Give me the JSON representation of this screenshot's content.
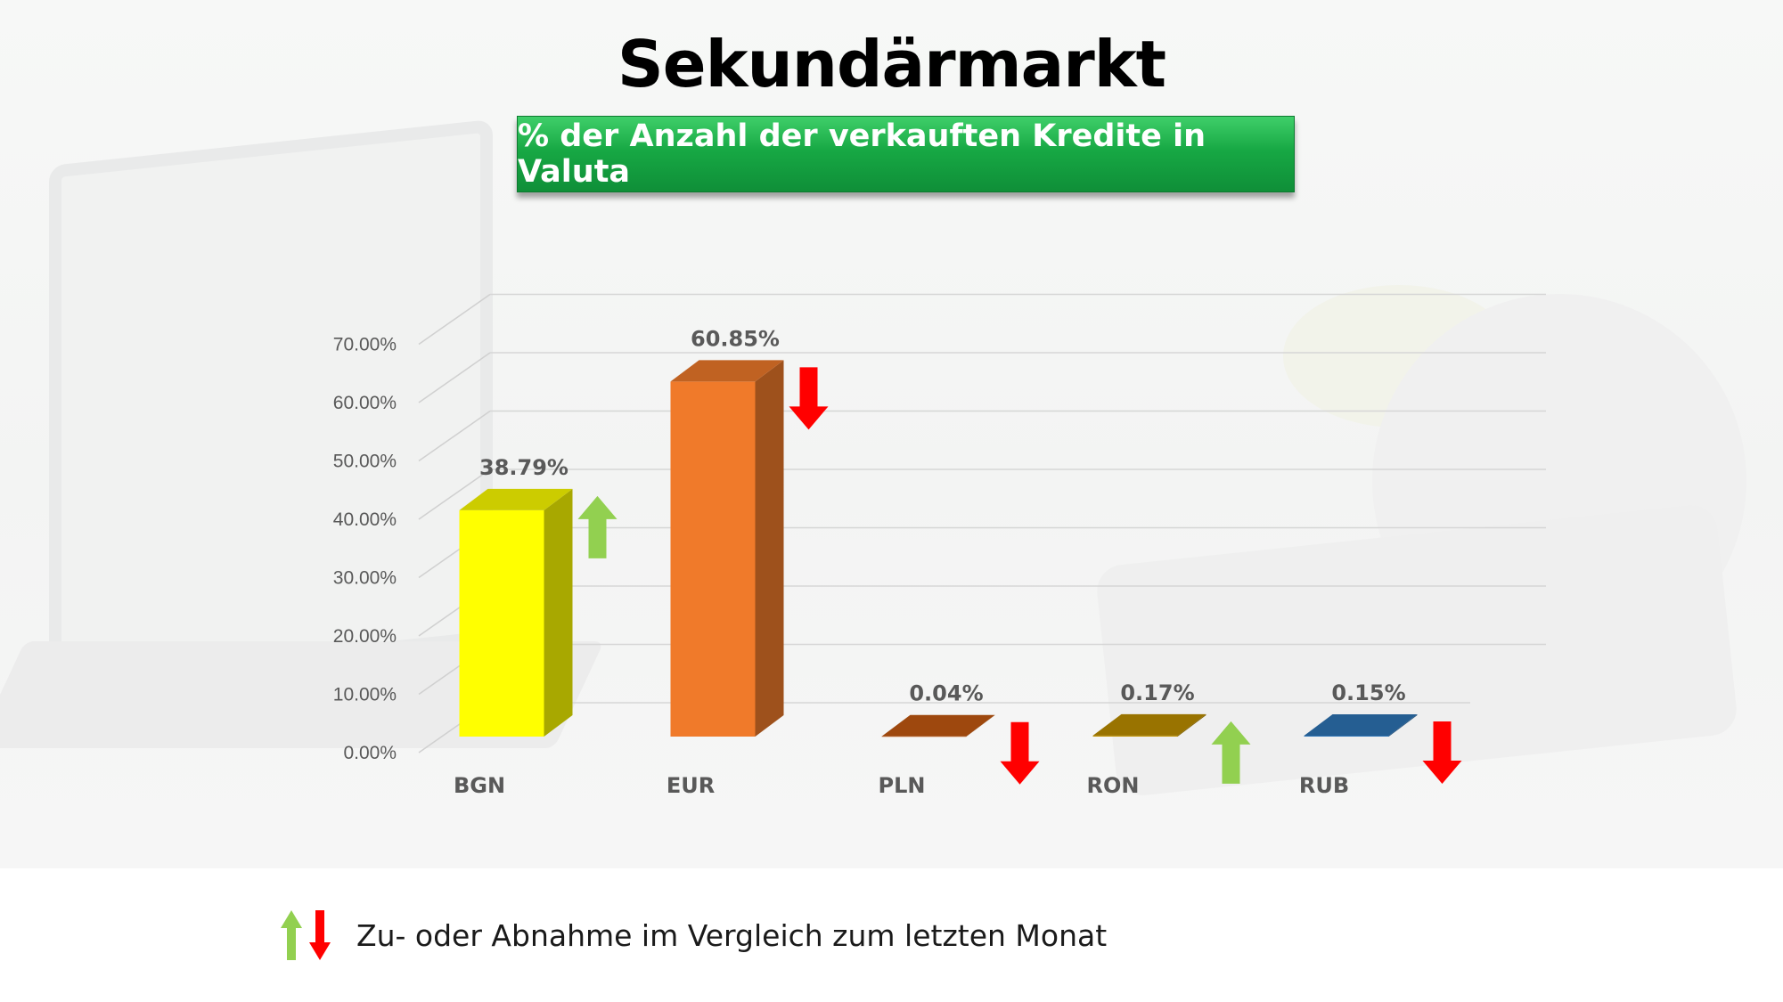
{
  "title": "Sekundärmarkt",
  "subtitle": "% der Anzahl der verkauften Kredite in Valuta",
  "legend_text": "Zu- oder Abnahme im Vergleich zum letzten Monat",
  "colors": {
    "up_arrow": "#92d050",
    "down_arrow": "#ff0000",
    "subtitle_bg": "#17a844"
  },
  "chart_data": {
    "type": "bar",
    "categories": [
      "BGN",
      "EUR",
      "PLN",
      "RON",
      "RUB"
    ],
    "values": [
      38.79,
      60.85,
      0.04,
      0.17,
      0.15
    ],
    "value_labels": [
      "38.79%",
      "60.85%",
      "0.04%",
      "0.17%",
      "0.15%"
    ],
    "bar_colors": [
      "#ffff00",
      "#f07a2a",
      "#c55a11",
      "#bf9000",
      "#2e75b6"
    ],
    "trend": [
      "up",
      "down",
      "down",
      "up",
      "down"
    ],
    "y_ticks": [
      "0.00%",
      "10.00%",
      "20.00%",
      "30.00%",
      "40.00%",
      "50.00%",
      "60.00%",
      "70.00%"
    ],
    "ylim": [
      0,
      70
    ],
    "grid": true,
    "style": "3d-bar"
  }
}
